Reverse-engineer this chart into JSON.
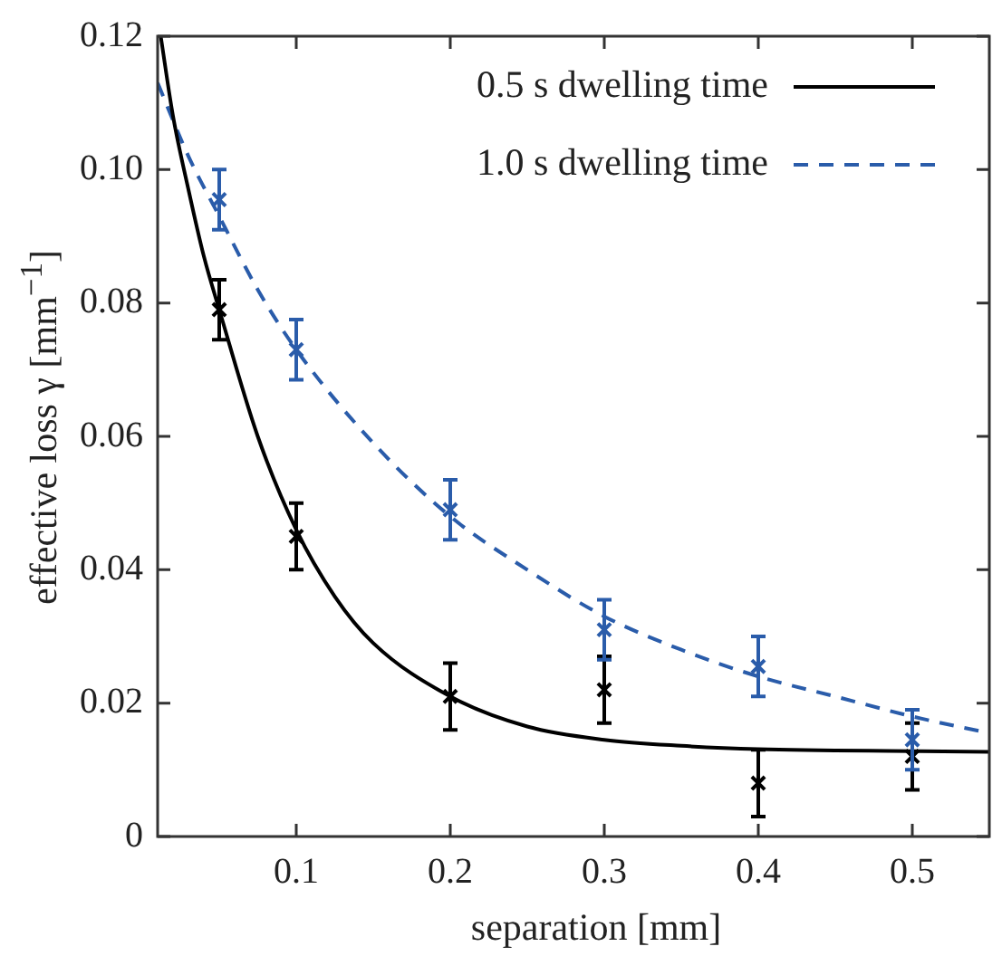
{
  "chart_data": {
    "type": "scatter",
    "xlabel": "separation [mm]",
    "ylabel": "effective loss γ [mm$^{−1}$]",
    "xlim": [
      0.01,
      0.55
    ],
    "ylim": [
      0,
      0.12
    ],
    "xticks": [
      0.1,
      0.2,
      0.3,
      0.4,
      0.5
    ],
    "yticks": [
      0,
      0.02,
      0.04,
      0.06,
      0.08,
      {
        "value": 0.1,
        "label": "0.10"
      },
      0.12
    ],
    "grid": false,
    "legend": "top right",
    "marker": "cross",
    "series": [
      {
        "color": "#000000",
        "x": [
          0.05,
          0.1,
          0.2,
          0.3,
          0.4,
          0.5
        ],
        "values": [
          0.079,
          0.045,
          0.021,
          0.022,
          0.008,
          0.012
        ],
        "errors": [
          0.0045,
          0.005,
          0.005,
          0.005,
          0.005,
          0.005
        ]
      },
      {
        "color": "#2a5caa",
        "x": [
          0.05,
          0.1,
          0.2,
          0.3,
          0.4,
          0.5
        ],
        "values": [
          0.0955,
          0.073,
          0.049,
          0.031,
          0.0255,
          0.0145
        ],
        "errors": [
          0.0045,
          0.0045,
          0.0045,
          0.0045,
          0.0045,
          0.0045
        ]
      },
      {
        "type": "line",
        "name": "0.5 s dwelling time",
        "color": "#000000",
        "line_style": "solid",
        "marker": "none",
        "x": [
          0.012,
          0.02,
          0.03,
          0.04,
          0.05,
          0.075,
          0.1,
          0.125,
          0.15,
          0.2,
          0.25,
          0.3,
          0.35,
          0.4,
          0.5,
          0.55
        ],
        "values": [
          0.12,
          0.108,
          0.097,
          0.087,
          0.079,
          0.06,
          0.046,
          0.036,
          0.029,
          0.021,
          0.0165,
          0.0145,
          0.0136,
          0.0131,
          0.0128,
          0.0127
        ]
      },
      {
        "type": "line",
        "name": "1.0 s dwelling time",
        "color": "#2a5caa",
        "line_style": "dashed",
        "marker": "none",
        "x": [
          0.01,
          0.03,
          0.05,
          0.075,
          0.1,
          0.15,
          0.2,
          0.25,
          0.3,
          0.35,
          0.4,
          0.45,
          0.5,
          0.55
        ],
        "values": [
          0.113,
          0.102,
          0.093,
          0.082,
          0.073,
          0.059,
          0.048,
          0.04,
          0.033,
          0.028,
          0.024,
          0.021,
          0.018,
          0.0155
        ]
      }
    ]
  }
}
